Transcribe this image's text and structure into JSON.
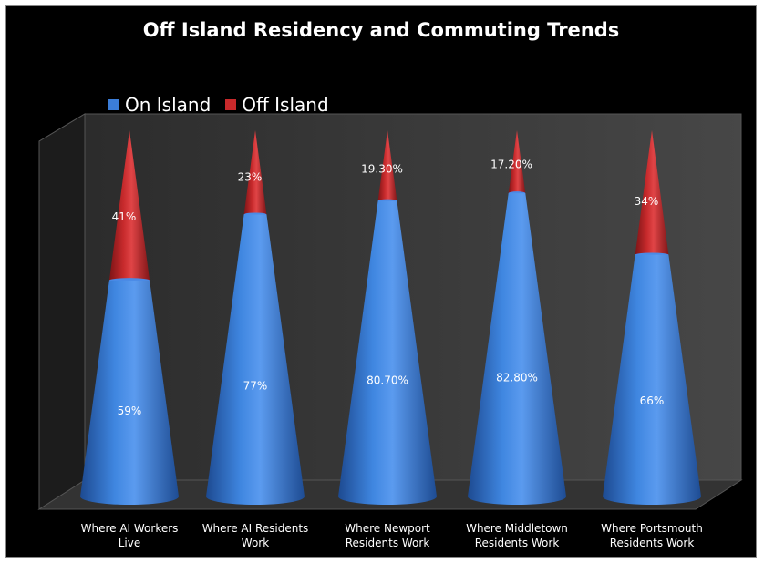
{
  "chart_data": {
    "type": "bar",
    "title": "Off Island Residency and Commuting Trends",
    "categories": [
      [
        "Where AI Workers",
        "Live"
      ],
      [
        "Where AI Residents",
        "Work"
      ],
      [
        "Where Newport",
        "Residents Work"
      ],
      [
        "Where Middletown",
        "Residents Work"
      ],
      [
        "Where Portsmouth",
        "Residents Work"
      ]
    ],
    "stacked": true,
    "percent_stacked": true,
    "ylim": [
      0,
      100
    ],
    "series": [
      {
        "name": "On Island",
        "values": [
          59,
          77,
          80.7,
          82.8,
          66
        ],
        "labels": [
          "59%",
          "77%",
          "80.70%",
          "82.80%",
          "66%"
        ],
        "color": "#3b7dd8"
      },
      {
        "name": "Off Island",
        "values": [
          41,
          23,
          19.3,
          17.2,
          34
        ],
        "labels": [
          "41%",
          "23%",
          "19.30%",
          "17.20%",
          "34%"
        ],
        "color": "#c8292b"
      }
    ],
    "legend_position": "top-left",
    "shape": "cone"
  }
}
